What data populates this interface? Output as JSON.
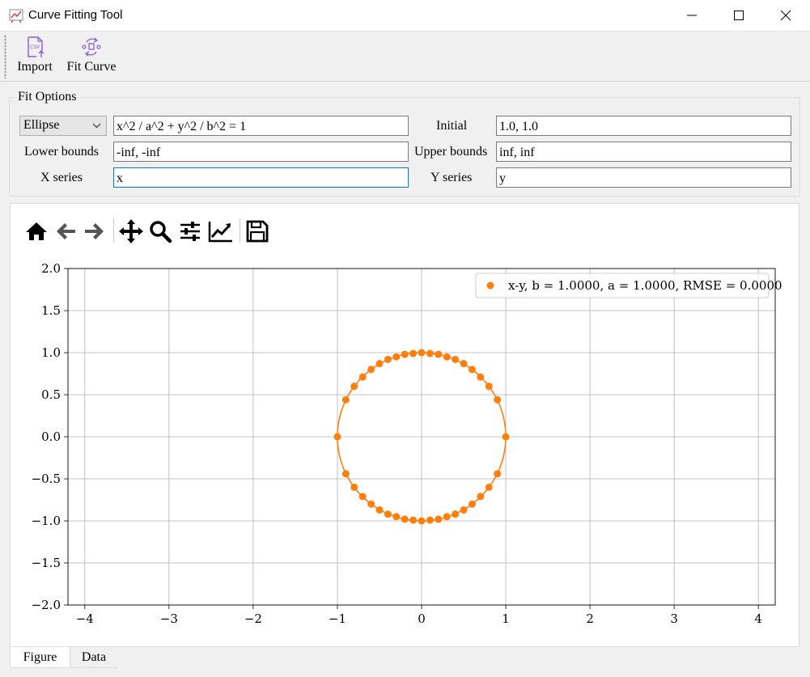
{
  "window": {
    "title": "Curve Fitting Tool",
    "minimize_icon": "minimize-icon",
    "maximize_icon": "maximize-icon",
    "close_icon": "close-icon"
  },
  "toolbar": {
    "import_label": "Import",
    "fit_curve_label": "Fit Curve",
    "import_icon": "csv-file-import-icon",
    "fit_curve_icon": "fit-curve-cycle-icon"
  },
  "fit_options": {
    "group_label": "Fit Options",
    "model": "Ellipse",
    "equation": "x^2 / a^2 + y^2 / b^2 = 1",
    "initial_label": "Initial",
    "initial": "1.0, 1.0",
    "lower_label": "Lower bounds",
    "lower": "-inf, -inf",
    "upper_label": "Upper bounds",
    "upper": "inf, inf",
    "x_series_label": "X series",
    "x_series": "x",
    "y_series_label": "Y series",
    "y_series": "y"
  },
  "plot_toolbar": [
    "home-icon",
    "back-arrow-icon",
    "forward-arrow-icon",
    "pan-icon",
    "zoom-icon",
    "subplots-config-icon",
    "axes-edit-icon",
    "save-icon"
  ],
  "tabs": [
    {
      "label": "Figure",
      "active": true
    },
    {
      "label": "Data",
      "active": false
    }
  ],
  "colors": {
    "series": "#ff7f0e",
    "focus": "#0078d7"
  },
  "chart_data": {
    "type": "scatter",
    "title": "",
    "xlabel": "",
    "ylabel": "",
    "xlim": [
      -4.2,
      4.2
    ],
    "ylim": [
      -2.0,
      2.0
    ],
    "xticks": [
      -4,
      -3,
      -2,
      -1,
      0,
      1,
      2,
      3,
      4
    ],
    "yticks": [
      -2.0,
      -1.5,
      -1.0,
      -0.5,
      0.0,
      0.5,
      1.0,
      1.5,
      2.0
    ],
    "xtick_labels": [
      "−4",
      "−3",
      "−2",
      "−1",
      "0",
      "1",
      "2",
      "3",
      "4"
    ],
    "ytick_labels": [
      "−2.0",
      "−1.5",
      "−1.0",
      "−0.5",
      "0.0",
      "0.5",
      "1.0",
      "1.5",
      "2.0"
    ],
    "grid": true,
    "legend_position": "top-right",
    "series": [
      {
        "name": "x-y, b = 1.0000, a = 1.0000, RMSE = 0.0000",
        "kind": "points",
        "points": [
          [
            1.0,
            0.0
          ],
          [
            0.9,
            0.44
          ],
          [
            0.8,
            0.6
          ],
          [
            0.7,
            0.71
          ],
          [
            0.6,
            0.8
          ],
          [
            0.5,
            0.87
          ],
          [
            0.4,
            0.92
          ],
          [
            0.3,
            0.95
          ],
          [
            0.2,
            0.98
          ],
          [
            0.1,
            0.99
          ],
          [
            0.0,
            1.0
          ],
          [
            -0.1,
            0.99
          ],
          [
            -0.2,
            0.98
          ],
          [
            -0.3,
            0.95
          ],
          [
            -0.4,
            0.92
          ],
          [
            -0.5,
            0.87
          ],
          [
            -0.6,
            0.8
          ],
          [
            -0.7,
            0.71
          ],
          [
            -0.8,
            0.6
          ],
          [
            -0.9,
            0.44
          ],
          [
            -1.0,
            0.0
          ],
          [
            -0.9,
            -0.44
          ],
          [
            -0.8,
            -0.6
          ],
          [
            -0.7,
            -0.71
          ],
          [
            -0.6,
            -0.8
          ],
          [
            -0.5,
            -0.87
          ],
          [
            -0.4,
            -0.92
          ],
          [
            -0.3,
            -0.95
          ],
          [
            -0.2,
            -0.98
          ],
          [
            -0.1,
            -0.99
          ],
          [
            0.0,
            -1.0
          ],
          [
            0.1,
            -0.99
          ],
          [
            0.2,
            -0.98
          ],
          [
            0.3,
            -0.95
          ],
          [
            0.4,
            -0.92
          ],
          [
            0.5,
            -0.87
          ],
          [
            0.6,
            -0.8
          ],
          [
            0.7,
            -0.71
          ],
          [
            0.8,
            -0.6
          ],
          [
            0.9,
            -0.44
          ]
        ]
      },
      {
        "name": "",
        "kind": "fit-curve",
        "shape": "ellipse",
        "a": 1.0,
        "b": 1.0
      }
    ]
  }
}
